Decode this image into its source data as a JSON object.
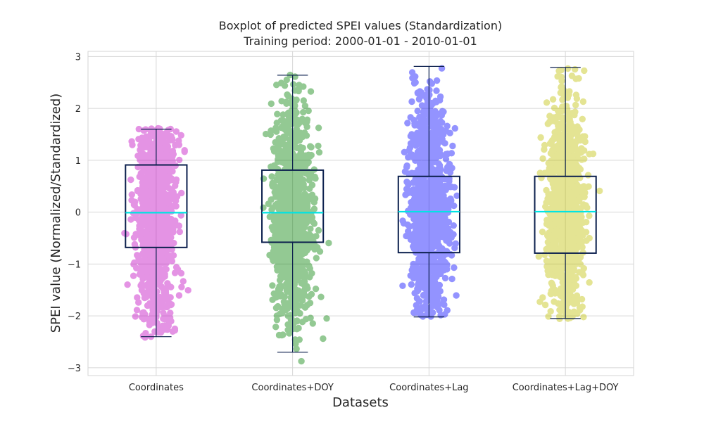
{
  "chart_data": {
    "type": "boxplot",
    "title": "Boxplot of predicted SPEI values (Standardization)",
    "subtitle": "Training period: 2000-01-01 - 2010-01-01",
    "xlabel": "Datasets",
    "ylabel": "SPEI value (Normalized/Standardized)",
    "ylim": [
      -3.15,
      3.1
    ],
    "yticks": [
      -3,
      -2,
      -1,
      0,
      1,
      2,
      3
    ],
    "ytick_labels": [
      "−3",
      "−2",
      "−1",
      "0",
      "1",
      "2",
      "3"
    ],
    "grid": true,
    "categories": [
      "Coordinates",
      "Coordinates+DOY",
      "Coordinates+Lag",
      "Coordinates+Lag+DOY"
    ],
    "series": [
      {
        "color": "#bf00bf",
        "box": {
          "whisker_low": -2.4,
          "q1": -0.68,
          "median": -0.01,
          "q3": 0.91,
          "whisker_high": 1.6
        },
        "points_range": [
          -2.42,
          1.62
        ]
      },
      {
        "color": "#008000",
        "box": {
          "whisker_low": -2.7,
          "q1": -0.58,
          "median": -0.01,
          "q3": 0.81,
          "whisker_high": 2.64
        },
        "points_range": [
          -2.88,
          2.66
        ]
      },
      {
        "color": "#0000ff",
        "box": {
          "whisker_low": -2.02,
          "q1": -0.78,
          "median": 0.01,
          "q3": 0.69,
          "whisker_high": 2.81
        },
        "points_range": [
          -2.03,
          2.8
        ]
      },
      {
        "color": "#bfbf00",
        "box": {
          "whisker_low": -2.05,
          "q1": -0.79,
          "median": 0.01,
          "q3": 0.69,
          "whisker_high": 2.79
        },
        "points_range": [
          -2.06,
          2.78
        ]
      }
    ],
    "box_edge_color": "#0b1f4d",
    "median_color": "#00e5e5"
  }
}
